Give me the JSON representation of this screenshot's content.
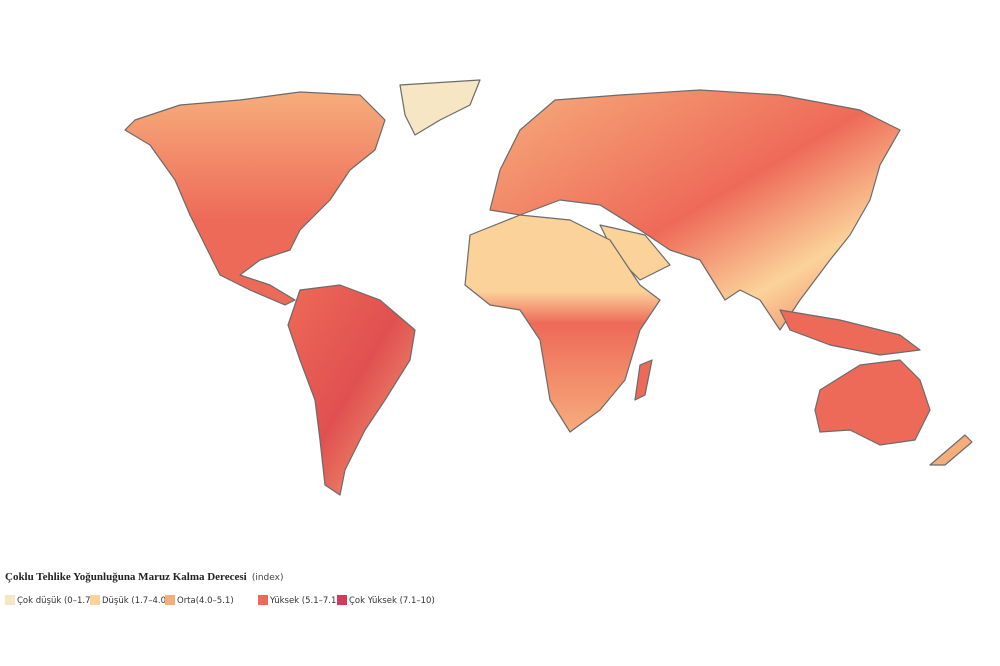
{
  "legend": {
    "title": "Çoklu Tehlike Yoğunluğuna Maruz Kalma Derecesi",
    "unit": "(index)",
    "items": [
      {
        "label": "Çok düşük (0–1.7)",
        "color": "#f7e6c4"
      },
      {
        "label": "Düşük (1.7–4.0)",
        "color": "#fbd39a"
      },
      {
        "label": "Orta(4.0–5.1)",
        "color": "#f6ad7c"
      },
      {
        "label": "Yüksek (5.1–7.1)",
        "color": "#ee6a58"
      },
      {
        "label": "Çok Yüksek (7.1–10)",
        "color": "#d63a5a"
      }
    ]
  }
}
